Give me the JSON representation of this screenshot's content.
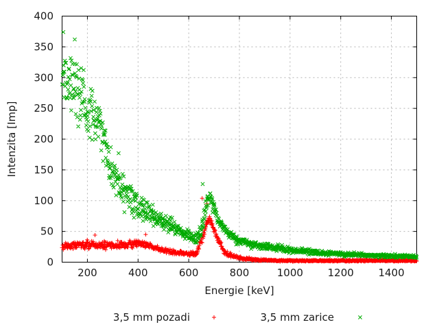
{
  "chart_data": {
    "type": "scatter",
    "title": "",
    "xlabel": "Energie [keV]",
    "ylabel": "Intenzita [Imp]",
    "xlim": [
      100,
      1500
    ],
    "ylim": [
      0,
      400
    ],
    "x_ticks": [
      200,
      400,
      600,
      800,
      1000,
      1200,
      1400
    ],
    "y_ticks": [
      0,
      50,
      100,
      150,
      200,
      250,
      300,
      350,
      400
    ],
    "grid": true,
    "grid_color": "#b3b3b3",
    "border_color": "#000000",
    "background": "#ffffff",
    "legend_position": "below-center",
    "series": [
      {
        "name": "3,5 mm pozadi",
        "marker": "plus",
        "color": "#ff0000",
        "points_count": 1100,
        "trend_keV_mean_spread": [
          [
            100,
            26,
            9
          ],
          [
            150,
            27,
            9
          ],
          [
            200,
            28,
            10
          ],
          [
            250,
            27,
            9
          ],
          [
            300,
            28,
            9
          ],
          [
            350,
            29,
            9
          ],
          [
            400,
            30,
            9
          ],
          [
            440,
            27,
            8
          ],
          [
            480,
            22,
            7
          ],
          [
            520,
            18,
            6
          ],
          [
            560,
            15,
            5
          ],
          [
            600,
            13,
            5
          ],
          [
            630,
            15,
            6
          ],
          [
            655,
            38,
            13
          ],
          [
            670,
            62,
            13
          ],
          [
            683,
            72,
            12
          ],
          [
            695,
            60,
            12
          ],
          [
            710,
            44,
            10
          ],
          [
            725,
            28,
            8
          ],
          [
            745,
            14,
            6
          ],
          [
            775,
            10,
            5
          ],
          [
            810,
            6,
            3.5
          ],
          [
            860,
            4,
            3
          ],
          [
            950,
            2.5,
            2
          ],
          [
            1100,
            2.5,
            2
          ],
          [
            1500,
            2.5,
            2
          ]
        ],
        "outliers": [
          [
            653,
            104
          ],
          [
            672,
            95
          ],
          [
            230,
            44
          ],
          [
            430,
            45
          ]
        ]
      },
      {
        "name": "3,5 mm zarice",
        "marker": "cross",
        "color": "#00aa00",
        "points_count": 1100,
        "trend_keV_mean_spread": [
          [
            100,
            300,
            62
          ],
          [
            140,
            285,
            68
          ],
          [
            200,
            250,
            72
          ],
          [
            250,
            215,
            65
          ],
          [
            300,
            145,
            48
          ],
          [
            350,
            115,
            38
          ],
          [
            400,
            92,
            30
          ],
          [
            450,
            79,
            23
          ],
          [
            500,
            66,
            18
          ],
          [
            550,
            55,
            15
          ],
          [
            600,
            42,
            14
          ],
          [
            632,
            37,
            12
          ],
          [
            655,
            62,
            18
          ],
          [
            670,
            94,
            20
          ],
          [
            683,
            104,
            18
          ],
          [
            698,
            90,
            17
          ],
          [
            718,
            68,
            15
          ],
          [
            748,
            50,
            13
          ],
          [
            790,
            36,
            10
          ],
          [
            850,
            28,
            8
          ],
          [
            930,
            24,
            7
          ],
          [
            1000,
            20,
            7
          ],
          [
            1100,
            16,
            6
          ],
          [
            1250,
            12,
            5
          ],
          [
            1400,
            10,
            4
          ],
          [
            1500,
            9,
            4
          ]
        ],
        "outliers": [
          [
            105,
            374
          ],
          [
            150,
            362
          ],
          [
            655,
            127
          ],
          [
            323,
            177
          ]
        ]
      }
    ]
  }
}
